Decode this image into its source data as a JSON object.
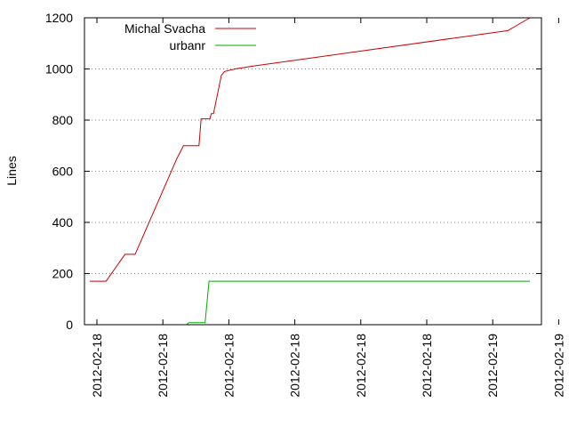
{
  "chart_data": {
    "type": "line",
    "title": "",
    "xlabel": "",
    "ylabel": "Lines",
    "ylim": [
      0,
      1200
    ],
    "y_ticks": [
      0,
      200,
      400,
      600,
      800,
      1000,
      1200
    ],
    "x_tick_labels": [
      "2012-02-18",
      "2012-02-18",
      "2012-02-18",
      "2012-02-18",
      "2012-02-18",
      "2012-02-18",
      "2012-02-19",
      "2012-02-19"
    ],
    "grid": true,
    "legend_position": "top-left",
    "series": [
      {
        "name": "Michal Svacha",
        "color": "#cc0000",
        "points": [
          [
            0.0,
            170
          ],
          [
            0.037,
            170
          ],
          [
            0.08,
            275
          ],
          [
            0.103,
            275
          ],
          [
            0.198,
            650
          ],
          [
            0.213,
            700
          ],
          [
            0.248,
            700
          ],
          [
            0.253,
            805
          ],
          [
            0.273,
            805
          ],
          [
            0.276,
            825
          ],
          [
            0.281,
            825
          ],
          [
            0.299,
            975
          ],
          [
            0.306,
            990
          ],
          [
            0.33,
            1000
          ],
          [
            0.366,
            1010
          ],
          [
            0.95,
            1150
          ],
          [
            1.0,
            1200
          ]
        ]
      },
      {
        "name": "urbanr",
        "color": "#00aa00",
        "points": [
          [
            0.017,
            0
          ],
          [
            0.22,
            0
          ],
          [
            0.225,
            8
          ],
          [
            0.262,
            8
          ],
          [
            0.271,
            170
          ],
          [
            1.0,
            170
          ]
        ]
      }
    ]
  }
}
